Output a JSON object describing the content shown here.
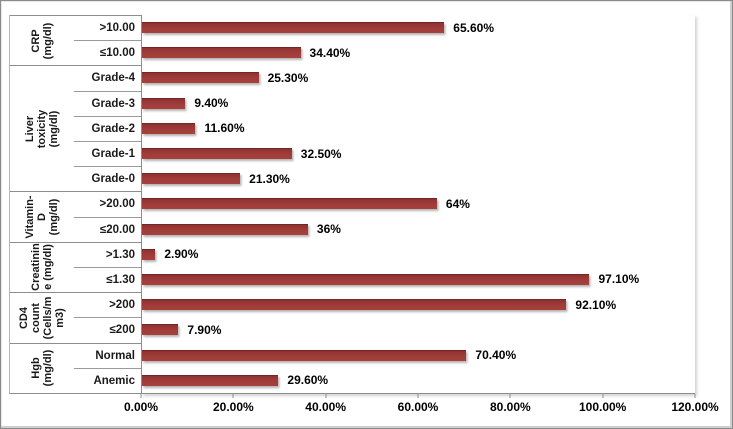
{
  "frame": {
    "background": "#ffffff",
    "border_color": "#8a8a8a"
  },
  "chart_data": {
    "type": "bar",
    "orientation": "horizontal",
    "title": "",
    "xlabel": "",
    "ylabel": "",
    "grid": false,
    "legend": false,
    "bar_color": "#9e3b39",
    "x_axis": {
      "min": 0,
      "max": 120,
      "tick_step": 20,
      "tick_labels": [
        "0.00%",
        "20.00%",
        "40.00%",
        "60.00%",
        "80.00%",
        "100.00%",
        "120.00%"
      ]
    },
    "groups": [
      {
        "name": "CRP (mg/dl)",
        "label_lines": "CRP\n(mg/dl)",
        "rows": [
          {
            "category": ">10.00",
            "value": 65.6,
            "label": "65.60%"
          },
          {
            "category": "≤10.00",
            "value": 34.4,
            "label": "34.40%"
          }
        ]
      },
      {
        "name": "Liver toxicity (mg/dl)",
        "label_lines": "Liver toxicity (mg/dl)",
        "rows": [
          {
            "category": "Grade-4",
            "value": 25.3,
            "label": "25.30%"
          },
          {
            "category": "Grade-3",
            "value": 9.4,
            "label": "9.40%"
          },
          {
            "category": "Grade-2",
            "value": 11.6,
            "label": "11.60%"
          },
          {
            "category": "Grade-1",
            "value": 32.5,
            "label": "32.50%"
          },
          {
            "category": "Grade-0",
            "value": 21.3,
            "label": "21.30%"
          }
        ]
      },
      {
        "name": "Vitamin-D (mg/dl)",
        "label_lines": "Vitamin-\nD (mg/dl)",
        "rows": [
          {
            "category": ">20.00",
            "value": 64,
            "label": "64%"
          },
          {
            "category": "≤20.00",
            "value": 36,
            "label": "36%"
          }
        ]
      },
      {
        "name": "Creatinine (mg/dl)",
        "label_lines": "Creatinin\ne (mg/dl)",
        "rows": [
          {
            "category": ">1.30",
            "value": 2.9,
            "label": "2.90%"
          },
          {
            "category": "≤1.30",
            "value": 97.1,
            "label": "97.10%"
          }
        ]
      },
      {
        "name": "CD4 count (Cells/mm3)",
        "label_lines": "CD4\ncount\n(Cells/m\nm3)",
        "rows": [
          {
            "category": ">200",
            "value": 92.1,
            "label": "92.10%"
          },
          {
            "category": "≤200",
            "value": 7.9,
            "label": "7.90%"
          }
        ]
      },
      {
        "name": "Hgb (mg/dl)",
        "label_lines": "Hgb\n(mg/dl)",
        "rows": [
          {
            "category": "Normal",
            "value": 70.4,
            "label": "70.40%"
          },
          {
            "category": "Anemic",
            "value": 29.6,
            "label": "29.60%"
          }
        ]
      }
    ]
  }
}
